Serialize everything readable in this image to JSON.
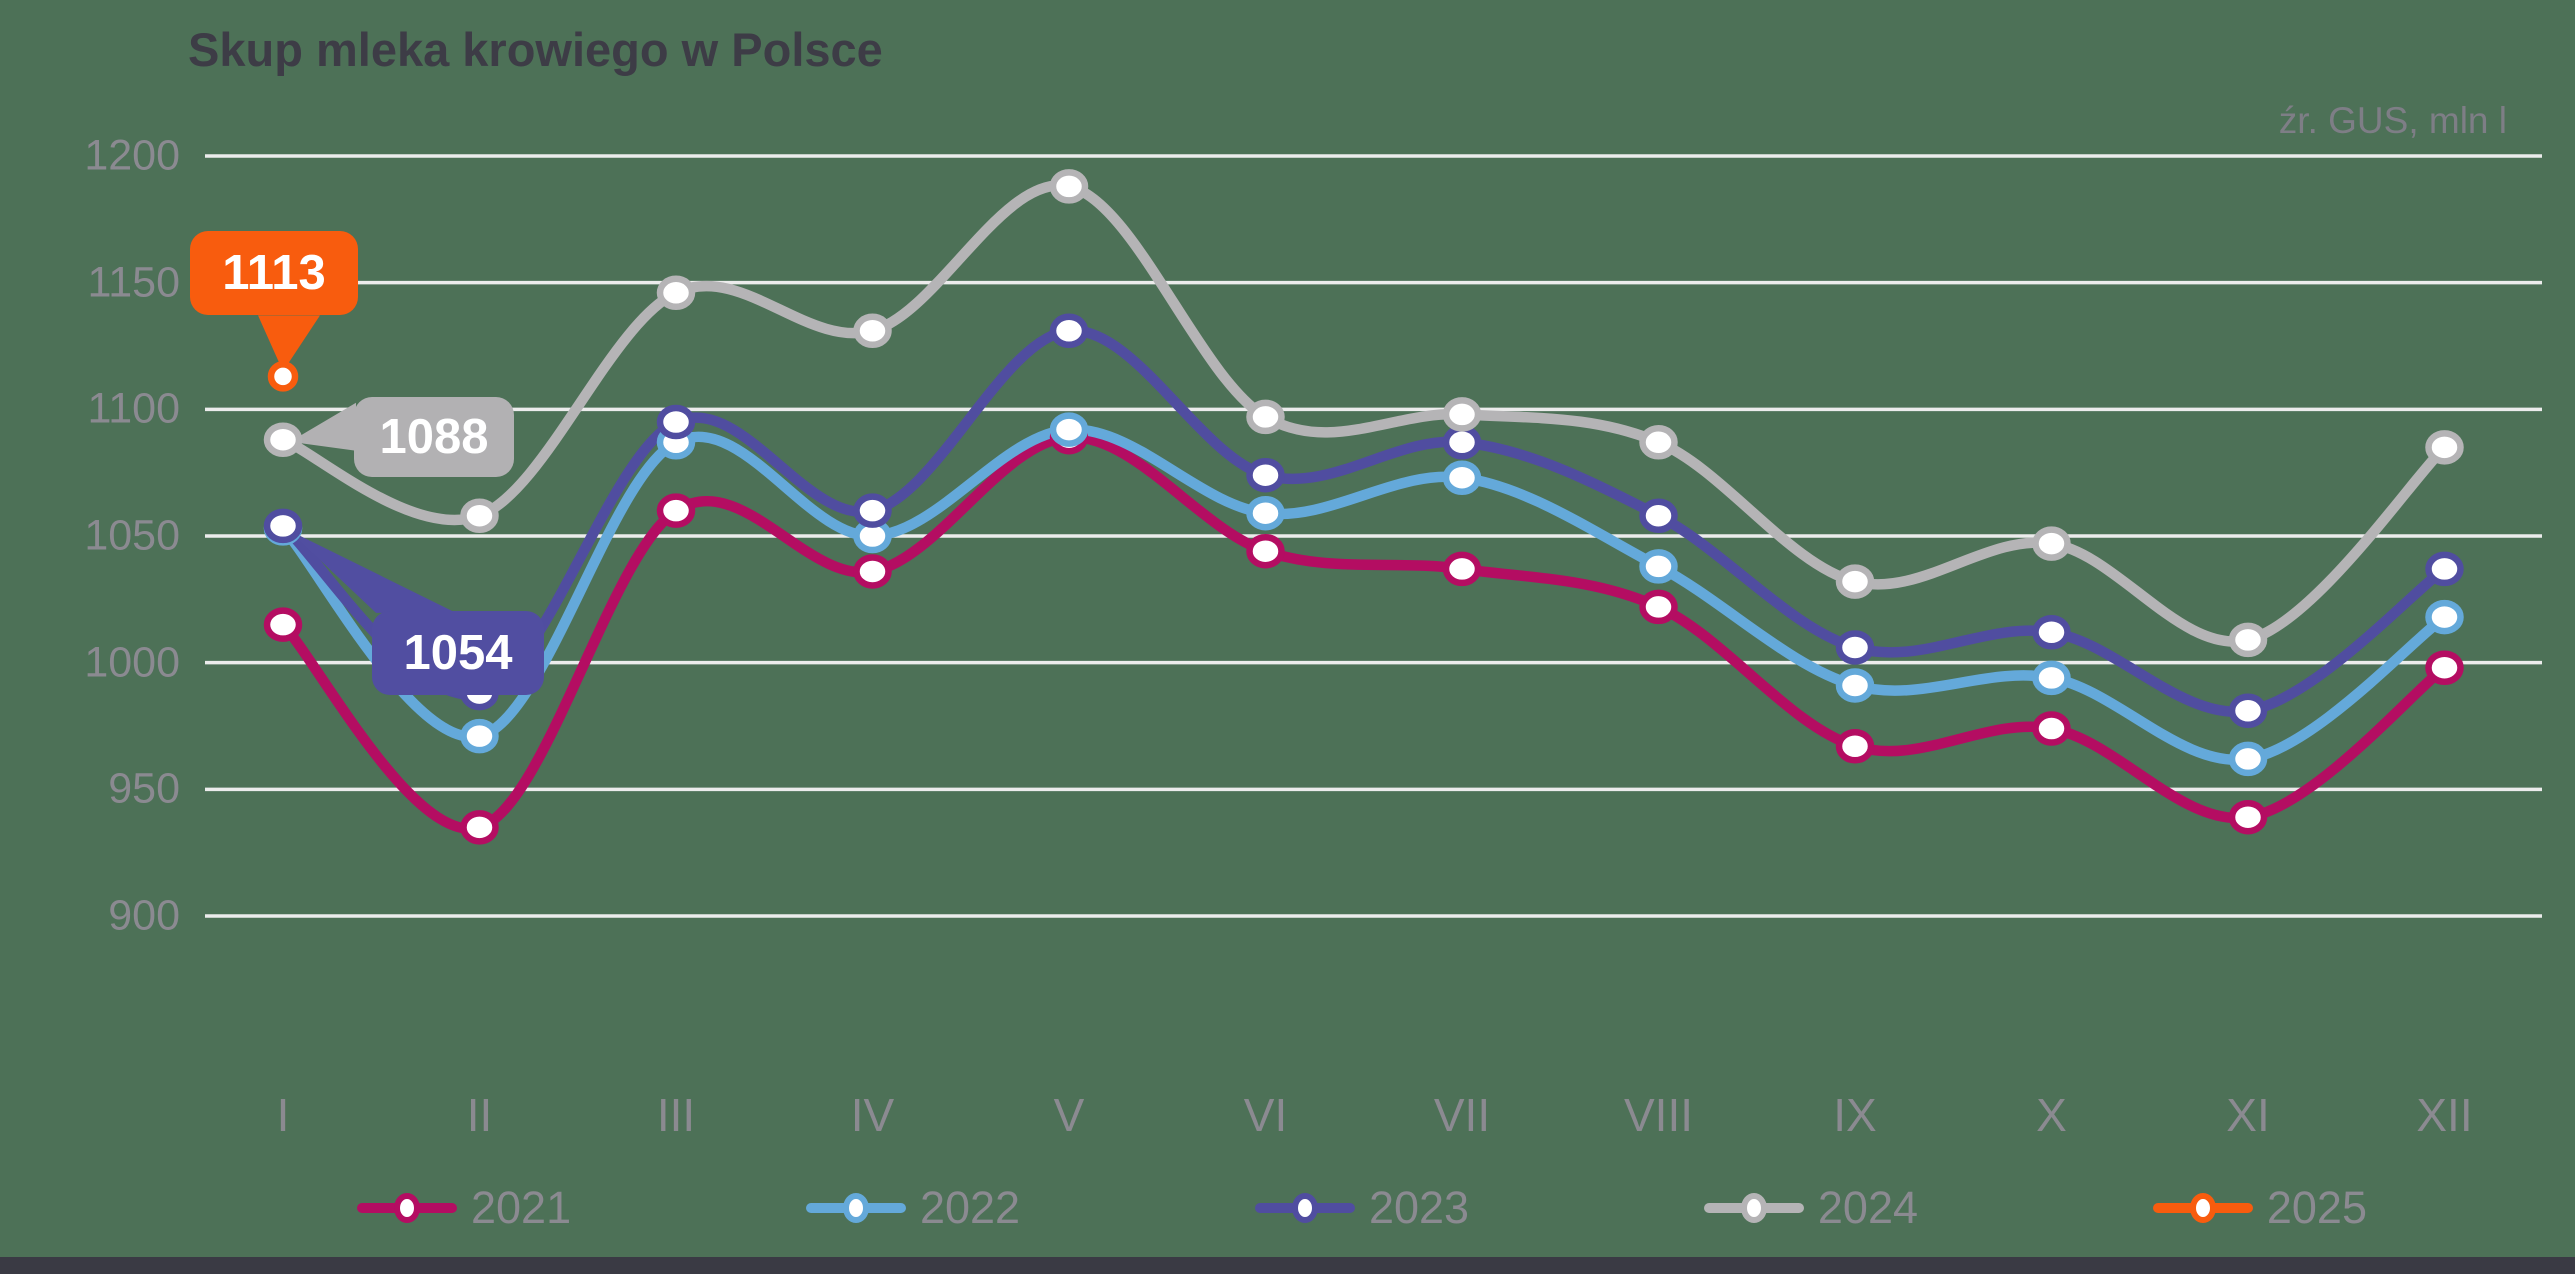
{
  "page": {
    "background_color": "#4d7157",
    "footer_bar_color": "#3a3a44",
    "grid_color": "#ececec",
    "axis_text_color": "#8b8a91"
  },
  "header": {
    "title": "Skup mleka krowiego w Polsce",
    "source_note": "źr. GUS, mln l"
  },
  "chart_data": {
    "type": "line",
    "title": "Skup mleka krowiego w Polsce",
    "unit": "mln l",
    "source": "źr. GUS",
    "x_categories": [
      "I",
      "II",
      "III",
      "IV",
      "V",
      "VI",
      "VII",
      "VIII",
      "IX",
      "X",
      "XI",
      "XII"
    ],
    "y_ticks": [
      1200,
      1150,
      1100,
      1050,
      1000,
      950,
      900
    ],
    "ylim": [
      900,
      1200
    ],
    "grid": true,
    "legend_position": "bottom",
    "series": [
      {
        "name": "2021",
        "color": "#b40d62",
        "values": [
          1015,
          935,
          1060,
          1036,
          1089,
          1044,
          1037,
          1022,
          967,
          974,
          939,
          998
        ]
      },
      {
        "name": "2022",
        "color": "#64a9da",
        "values": [
          1053,
          971,
          1087,
          1050,
          1092,
          1059,
          1073,
          1038,
          991,
          994,
          962,
          1018
        ]
      },
      {
        "name": "2023",
        "color": "#504da0",
        "values": [
          1054,
          988,
          1095,
          1060,
          1131,
          1074,
          1087,
          1058,
          1006,
          1012,
          981,
          1037
        ]
      },
      {
        "name": "2024",
        "color": "#b5b4b6",
        "values": [
          1088,
          1058,
          1146,
          1131,
          1188,
          1097,
          1098,
          1087,
          1032,
          1047,
          1009,
          1085
        ]
      },
      {
        "name": "2025",
        "color": "#f85c0e",
        "values": [
          1113
        ]
      }
    ],
    "callouts": [
      {
        "value": "1113",
        "series": "2025",
        "month": "I",
        "color": "#f85c0e"
      },
      {
        "value": "1088",
        "series": "2024",
        "month": "I",
        "color": "#b2b1b3"
      },
      {
        "value": "1054",
        "series": "2023",
        "month": "I",
        "color": "#514ea1"
      }
    ]
  }
}
